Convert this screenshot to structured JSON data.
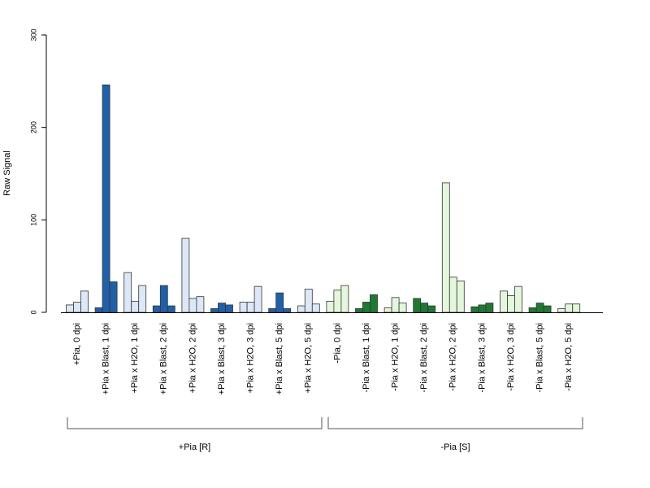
{
  "chart_data": {
    "type": "bar",
    "ylabel": "Raw Signal",
    "ylim": [
      0,
      300
    ],
    "yticks": [
      0,
      100,
      200,
      300
    ],
    "categories": [
      "+Pia, 0 dpi",
      "+Pia x Blast, 1 dpi",
      "+Pia x H2O, 1 dpi",
      "+Pia x Blast, 2 dpi",
      "+Pia x H2O, 2 dpi",
      "+Pia x Blast, 3 dpi",
      "+Pia x H2O, 3 dpi",
      "+Pia x Blast, 5 dpi",
      "+Pia x H2O, 5 dpi",
      "-Pia, 0 dpi",
      "-Pia x Blast, 1 dpi",
      "-Pia x H2O, 1 dpi",
      "-Pia x Blast, 2 dpi",
      "-Pia x H2O, 2 dpi",
      "-Pia x Blast, 3 dpi",
      "-Pia x H2O, 3 dpi",
      "-Pia x Blast, 5 dpi",
      "-Pia x H2O, 5 dpi"
    ],
    "values": [
      [
        8,
        11,
        23
      ],
      [
        5,
        246,
        33
      ],
      [
        43,
        12,
        29
      ],
      [
        7,
        29,
        7
      ],
      [
        80,
        15,
        17
      ],
      [
        4,
        10,
        8
      ],
      [
        11,
        11,
        28
      ],
      [
        4,
        21,
        4
      ],
      [
        7,
        25,
        9
      ],
      [
        12,
        24,
        29
      ],
      [
        4,
        11,
        19
      ],
      [
        5,
        16,
        10
      ],
      [
        15,
        10,
        7
      ],
      [
        140,
        38,
        34
      ],
      [
        6,
        8,
        10
      ],
      [
        23,
        18,
        28
      ],
      [
        5,
        10,
        7
      ],
      [
        4,
        9,
        9
      ]
    ],
    "bar_colors": [
      "#dce8f6",
      "#2060a8",
      "#dce8f6",
      "#2060a8",
      "#dce8f6",
      "#2060a8",
      "#dce8f6",
      "#2060a8",
      "#dce8f6",
      "#e4f7dc",
      "#1e7a32",
      "#e4f7dc",
      "#1e7a32",
      "#e4f7dc",
      "#1e7a32",
      "#e4f7dc",
      "#1e7a32",
      "#e4f7dc"
    ],
    "groups": [
      {
        "label": "+Pia [R]",
        "start": 0,
        "end": 8
      },
      {
        "label": "-Pia [S]",
        "start": 9,
        "end": 17
      }
    ],
    "grid": false
  }
}
